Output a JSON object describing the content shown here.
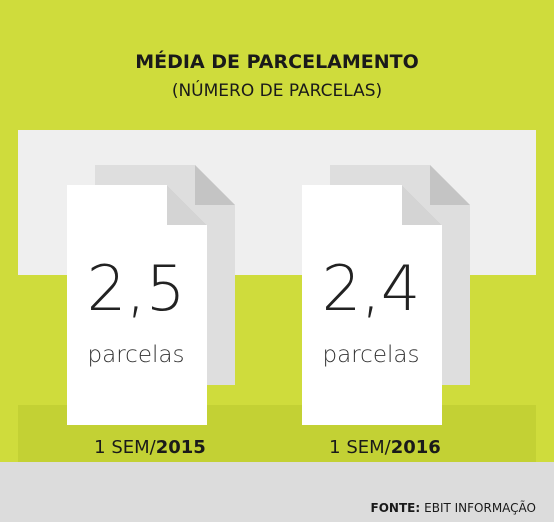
{
  "header": {
    "title": "MÉDIA DE PARCELAMENTO",
    "subtitle": "(NÚMERO DE PARCELAS)"
  },
  "items": [
    {
      "value": "2,5",
      "unit": "parcelas",
      "period": "1 SEM/",
      "year": "2015"
    },
    {
      "value": "2,4",
      "unit": "parcelas",
      "period": "1 SEM/",
      "year": "2016"
    }
  ],
  "footer": {
    "label": "FONTE:",
    "source": "EBIT INFORMAÇÃO"
  }
}
